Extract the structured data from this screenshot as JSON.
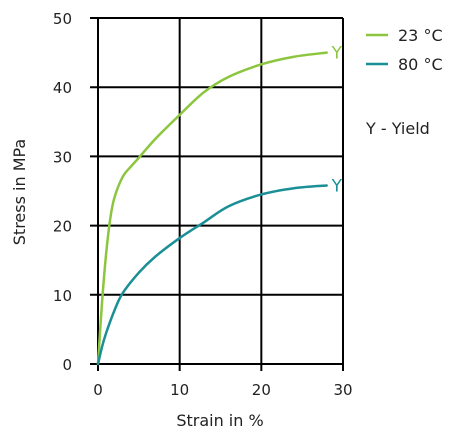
{
  "chart_data": {
    "type": "line",
    "xlabel": "Strain in %",
    "ylabel": "Stress in MPa",
    "xlim": [
      0,
      30
    ],
    "ylim": [
      0,
      50
    ],
    "xticks": [
      "0",
      "10",
      "20",
      "30"
    ],
    "yticks": [
      "0",
      "10",
      "20",
      "30",
      "40",
      "50"
    ],
    "grid": true,
    "legend_position": "right",
    "note": "Y - Yield",
    "series": [
      {
        "name": "23 °C",
        "color": "#8cc63f",
        "end_label": "Y",
        "x": [
          0,
          0.5,
          1,
          1.5,
          2,
          3,
          4,
          5,
          7,
          10,
          13,
          16,
          20,
          24,
          28
        ],
        "y": [
          0,
          9,
          16,
          21,
          24,
          27,
          28.5,
          29.8,
          32.5,
          36,
          39.3,
          41.5,
          43.3,
          44.4,
          45
        ]
      },
      {
        "name": "80 °C",
        "color": "#1a9096",
        "end_label": "Y",
        "x": [
          0,
          0.5,
          1,
          2,
          3,
          5,
          7,
          10,
          13,
          16,
          20,
          24,
          28
        ],
        "y": [
          0,
          2.5,
          4.5,
          7.7,
          10.2,
          13.2,
          15.5,
          18.2,
          20.5,
          22.8,
          24.5,
          25.4,
          25.8
        ]
      }
    ]
  }
}
